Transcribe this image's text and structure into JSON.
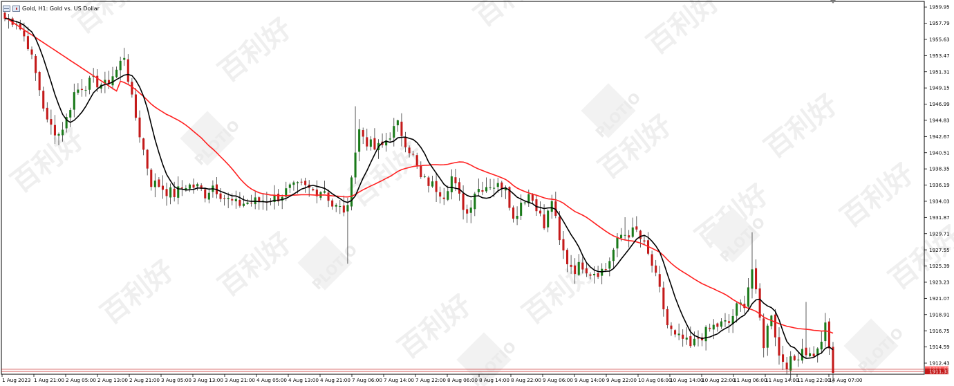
{
  "window": {
    "title": "Gold, H1:  Gold vs. US Dollar"
  },
  "watermark": {
    "text": "百利好",
    "brand": "PLOTIO"
  },
  "colors": {
    "background": "#ffffff",
    "bull": "#1a7a1a",
    "bear": "#c41a1a",
    "wick": "#333333",
    "ma_slow": "#ff2020",
    "ma_fast": "#000000",
    "bid_line": "#c41a1a",
    "ask_line": "#c41a1a",
    "bid_tag": "#c41a1a",
    "ask_tag": "#ff6666"
  },
  "chart_data": {
    "type": "candlestick",
    "title": "Gold, H1:  Gold vs. US Dollar",
    "ylim": [
      1910.95,
      1960.7
    ],
    "y_ticks": [
      "1959.95",
      "1957.79",
      "1955.63",
      "1953.47",
      "1951.31",
      "1949.15",
      "1946.99",
      "1944.83",
      "1942.67",
      "1940.51",
      "1938.35",
      "1936.19",
      "1934.03",
      "1931.87",
      "1929.71",
      "1927.55",
      "1925.39",
      "1923.23",
      "1921.07",
      "1918.91",
      "1916.75",
      "1914.59",
      "1912.43"
    ],
    "x_ticks": [
      "1 Aug 2023",
      "1 Aug 21:00",
      "2 Aug 05:00",
      "2 Aug 13:00",
      "2 Aug 21:00",
      "3 Aug 05:00",
      "3 Aug 13:00",
      "3 Aug 21:00",
      "4 Aug 05:00",
      "4 Aug 13:00",
      "4 Aug 21:00",
      "7 Aug 06:00",
      "7 Aug 14:00",
      "7 Aug 22:00",
      "8 Aug 06:00",
      "8 Aug 14:00",
      "8 Aug 22:00",
      "9 Aug 06:00",
      "9 Aug 14:00",
      "9 Aug 22:00",
      "10 Aug 06:00",
      "10 Aug 14:00",
      "10 Aug 22:00",
      "11 Aug 06:00",
      "11 Aug 14:00",
      "11 Aug 22:00",
      "14 Aug 07:00"
    ],
    "bid_price": "1911.33",
    "ask_price": "1911.62",
    "key_prices": {
      "high_start": 1959.6,
      "drop_low": 1941.5,
      "rebound_high": 1954.5,
      "aug4_spike_high": 1946.7,
      "aug4_spike_low": 1925.7,
      "aug7_high": 1944.9,
      "aug9_high": 1931.9,
      "aug10_high": 1929.9,
      "aug11_high": 1920.6,
      "final_low": 1911.0
    },
    "series": [
      {
        "name": "MA slow",
        "role": "moving_average"
      },
      {
        "name": "MA fast",
        "role": "moving_average"
      }
    ],
    "grid": false
  }
}
